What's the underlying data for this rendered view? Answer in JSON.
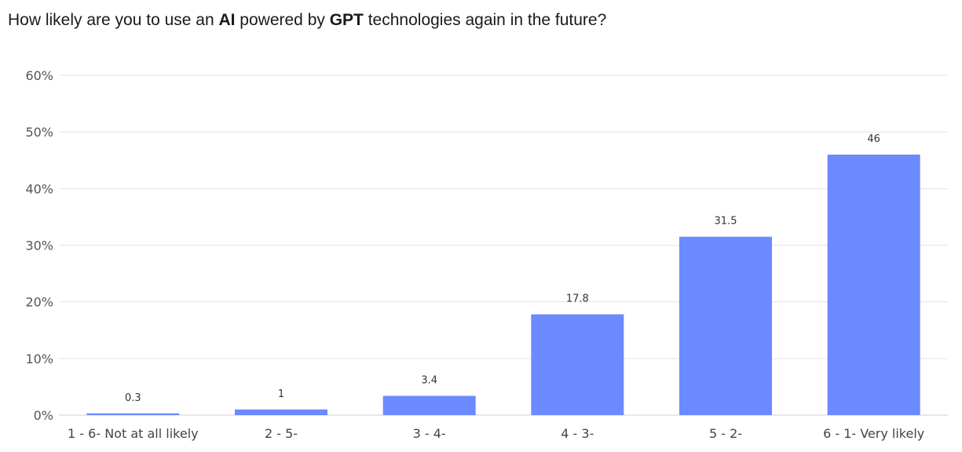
{
  "title": {
    "part1": "How likely are you to use an ",
    "bold1": "AI",
    "part2": " powered by ",
    "bold2": "GPT",
    "part3": " technologies again in the future?"
  },
  "chart_data": {
    "type": "bar",
    "title": "How likely are you to use an AI powered by GPT technologies again in the future?",
    "categories": [
      "1 - 6- Not at all likely",
      "2 - 5-",
      "3 - 4-",
      "4 - 3-",
      "5 - 2-",
      "6 - 1- Very likely"
    ],
    "values": [
      0.3,
      1,
      3.4,
      17.8,
      31.5,
      46
    ],
    "data_labels": [
      "0.3",
      "1",
      "3.4",
      "17.8",
      "31.5",
      "46"
    ],
    "ylim": [
      0,
      60
    ],
    "yticks": [
      0,
      10,
      20,
      30,
      40,
      50,
      60
    ],
    "ytick_labels": [
      "0%",
      "10%",
      "20%",
      "30%",
      "40%",
      "50%",
      "60%"
    ],
    "xlabel": "",
    "ylabel": "",
    "grid": true,
    "legend": "none",
    "bar_color": "#6b8aff",
    "grid_color": "#e3e3e3"
  }
}
